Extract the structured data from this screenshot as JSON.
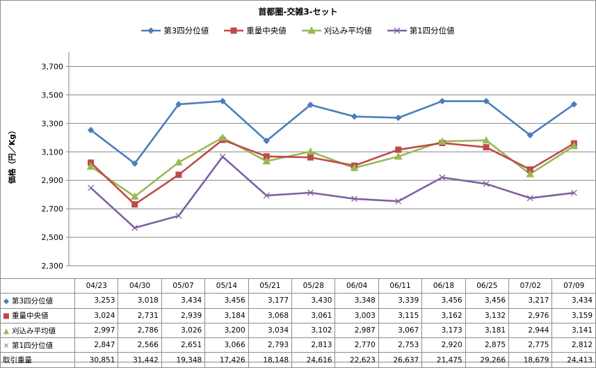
{
  "chart_data": {
    "type": "line",
    "title": "首都圏-交雑3-セット",
    "ylabel": "価格（円／Kg）",
    "ylim": [
      2300,
      3800
    ],
    "yticks": [
      "2,300",
      "2,500",
      "2,700",
      "2,900",
      "3,100",
      "3,300",
      "3,500",
      "3,700"
    ],
    "ytick_values": [
      2300,
      2500,
      2700,
      2900,
      3100,
      3300,
      3500,
      3700
    ],
    "grid": true,
    "legend_position": "top",
    "categories": [
      "04/23",
      "04/30",
      "05/07",
      "05/14",
      "05/21",
      "05/28",
      "06/04",
      "06/11",
      "06/18",
      "06/25",
      "07/02",
      "07/09"
    ],
    "series": [
      {
        "name": "第3四分位値",
        "color": "#4a7ebb",
        "marker": "diamond",
        "values": [
          3253,
          3018,
          3434,
          3456,
          3177,
          3430,
          3348,
          3339,
          3456,
          3456,
          3217,
          3434
        ],
        "labels": [
          "3,253",
          "3,018",
          "3,434",
          "3,456",
          "3,177",
          "3,430",
          "3,348",
          "3,339",
          "3,456",
          "3,456",
          "3,217",
          "3,434"
        ]
      },
      {
        "name": "重量中央値",
        "color": "#be4b48",
        "marker": "square",
        "values": [
          3024,
          2731,
          2939,
          3184,
          3068,
          3061,
          3003,
          3115,
          3162,
          3132,
          2976,
          3159
        ],
        "labels": [
          "3,024",
          "2,731",
          "2,939",
          "3,184",
          "3,068",
          "3,061",
          "3,003",
          "3,115",
          "3,162",
          "3,132",
          "2,976",
          "3,159"
        ]
      },
      {
        "name": "刈込み平均値",
        "color": "#98b954",
        "marker": "triangle",
        "values": [
          2997,
          2786,
          3026,
          3200,
          3034,
          3102,
          2987,
          3067,
          3173,
          3181,
          2944,
          3141
        ],
        "labels": [
          "2,997",
          "2,786",
          "3,026",
          "3,200",
          "3,034",
          "3,102",
          "2,987",
          "3,067",
          "3,173",
          "3,181",
          "2,944",
          "3,141"
        ]
      },
      {
        "name": "第1四分位値",
        "color": "#7d60a0",
        "marker": "x",
        "values": [
          2847,
          2566,
          2651,
          3066,
          2793,
          2813,
          2770,
          2753,
          2920,
          2875,
          2775,
          2812
        ],
        "labels": [
          "2,847",
          "2,566",
          "2,651",
          "3,066",
          "2,793",
          "2,813",
          "2,770",
          "2,753",
          "2,920",
          "2,875",
          "2,775",
          "2,812"
        ]
      }
    ],
    "extra_row": {
      "name": "取引重量",
      "values": [
        30851,
        31442,
        19348,
        17426,
        18148,
        24616,
        22623,
        26637,
        21475,
        29266,
        18679,
        24413
      ],
      "labels": [
        "30,851",
        "31,442",
        "19,348",
        "17,426",
        "18,148",
        "24,616",
        "22,623",
        "26,637",
        "21,475",
        "29,266",
        "18,679",
        "24,413"
      ]
    }
  }
}
